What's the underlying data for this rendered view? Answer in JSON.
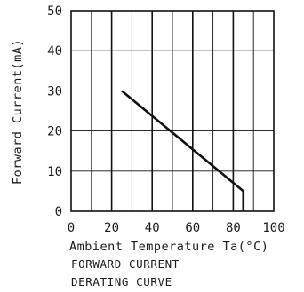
{
  "chart_data": {
    "type": "line",
    "xlabel": "Ambient Temperature Ta(°C)",
    "ylabel": "Forward Current(mA)",
    "xlim": [
      0,
      100
    ],
    "ylim": [
      0,
      50
    ],
    "x_ticks": [
      "0",
      "20",
      "40",
      "60",
      "80",
      "100"
    ],
    "y_ticks": [
      "0",
      "10",
      "20",
      "30",
      "40",
      "50"
    ],
    "grid": true,
    "x_minor_step": 10,
    "y_major_step": 10,
    "series": [
      {
        "x": [
          25,
          85,
          85
        ],
        "y": [
          30,
          5,
          0
        ]
      }
    ],
    "title_lines": [
      "FORWARD CURRENT",
      "DERATING CURVE"
    ]
  }
}
